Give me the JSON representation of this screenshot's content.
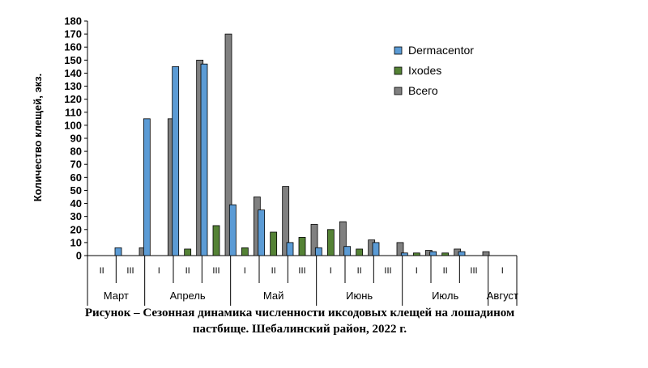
{
  "chart_data": {
    "type": "bar",
    "ylabel": "Количество клещей, экз.",
    "ylim": [
      0,
      180
    ],
    "yticks": [
      0,
      10,
      20,
      30,
      40,
      50,
      60,
      70,
      80,
      90,
      100,
      110,
      120,
      130,
      140,
      150,
      160,
      170,
      180
    ],
    "categories": [
      "II",
      "III",
      "I",
      "II",
      "III",
      "I",
      "II",
      "III",
      "I",
      "II",
      "III",
      "I",
      "II",
      "III",
      "I"
    ],
    "months": [
      {
        "name": "Март",
        "span": 2
      },
      {
        "name": "Апрель",
        "span": 3
      },
      {
        "name": "Май",
        "span": 3
      },
      {
        "name": "Июнь",
        "span": 3
      },
      {
        "name": "Июль",
        "span": 3
      },
      {
        "name": "Август",
        "span": 1
      }
    ],
    "series": [
      {
        "name": "Dermacentor",
        "color": "#5B9BD5",
        "values": [
          0,
          6,
          105,
          145,
          147,
          39,
          35,
          10,
          6,
          7,
          10,
          2,
          3,
          3,
          0
        ]
      },
      {
        "name": "Ixodes",
        "color": "#548235",
        "values": [
          0,
          0,
          0,
          5,
          23,
          6,
          18,
          14,
          20,
          5,
          0,
          2,
          2,
          0,
          0
        ]
      },
      {
        "name": "Всего",
        "color": "#808080",
        "values": [
          0,
          6,
          105,
          150,
          170,
          45,
          53,
          24,
          26,
          12,
          10,
          4,
          5,
          3,
          0
        ]
      }
    ],
    "legend": "top-right",
    "grid": false
  },
  "caption": {
    "line1": "Рисунок – Сезонная динамика численности иксодовых клещей на лошадином",
    "line2": "пастбище. Шебалинский район, 2022 г."
  }
}
